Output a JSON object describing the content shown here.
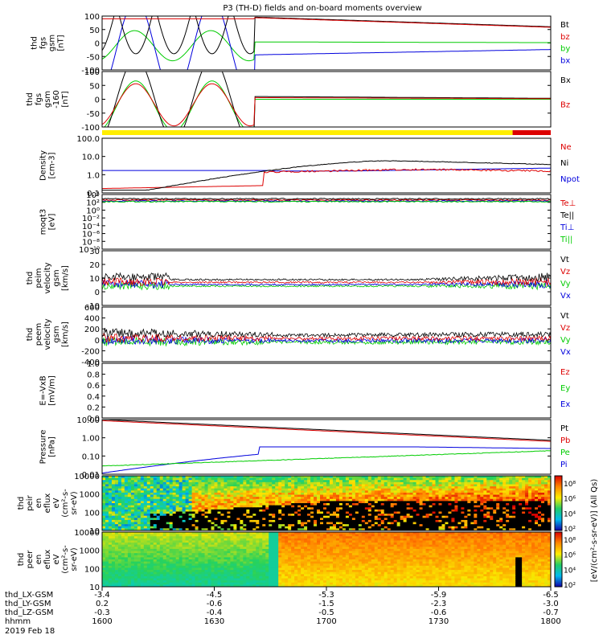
{
  "title": "P3 (TH-D) fields and on-board moments overview",
  "colors": {
    "black": "#000000",
    "red": "#dd0000",
    "green": "#00cc00",
    "blue": "#0000dd",
    "yellow": "#ffee00"
  },
  "chart_data": {
    "type": "line",
    "time_range": [
      "1600",
      "1800"
    ],
    "panels": [
      {
        "id": "fgs",
        "ylabel": [
          "thd",
          "fgs",
          "gsm",
          "[nT]"
        ],
        "yticks": [
          "100",
          "50",
          "0",
          "-50",
          "-100"
        ],
        "ylim": [
          -100,
          100
        ],
        "legend": [
          {
            "label": "Bt",
            "color": "#000000"
          },
          {
            "label": "bz",
            "color": "#dd0000"
          },
          {
            "label": "by",
            "color": "#00cc00"
          },
          {
            "label": "bx",
            "color": "#0000dd"
          }
        ]
      },
      {
        "id": "fgs2",
        "ylabel": [
          "thd",
          "fgs",
          "gsm",
          "-160",
          "[nT]"
        ],
        "yticks": [
          "100",
          "50",
          "0",
          "-50",
          "-100"
        ],
        "ylim": [
          -120,
          120
        ],
        "legend": [
          {
            "label": "Bx",
            "color": "#000000"
          },
          {
            "label": "Bz",
            "color": "#dd0000"
          }
        ]
      },
      {
        "id": "density",
        "ylabel": [
          "Density",
          "[cm-3]"
        ],
        "yticks": [
          "100.0",
          "10.0",
          "1.0",
          "0.1"
        ],
        "scale": "log",
        "legend": [
          {
            "label": "Ne",
            "color": "#dd0000"
          },
          {
            "label": "Ni",
            "color": "#000000"
          },
          {
            "label": "Npot",
            "color": "#0000dd"
          }
        ]
      },
      {
        "id": "temp",
        "ylabel": [
          "moqt3",
          "[eV]"
        ],
        "yticks": [
          "10⁴",
          "10²",
          "10⁰",
          "10⁻²",
          "10⁻⁴",
          "10⁻⁶",
          "10⁻⁸",
          "10⁻¹⁰"
        ],
        "scale": "log",
        "legend": [
          {
            "label": "Te⊥",
            "color": "#dd0000"
          },
          {
            "label": "Te||",
            "color": "#000000"
          },
          {
            "label": "Ti⊥",
            "color": "#0000dd"
          },
          {
            "label": "Ti||",
            "color": "#00cc00"
          }
        ]
      },
      {
        "id": "peim",
        "ylabel": [
          "thd",
          "peim",
          "velocity",
          "gsm",
          "[km/s]"
        ],
        "yticks": [
          "30",
          "20",
          "10",
          "0",
          "-10"
        ],
        "ylim": [
          -20,
          30
        ],
        "legend": [
          {
            "label": "Vt",
            "color": "#000000"
          },
          {
            "label": "Vz",
            "color": "#dd0000"
          },
          {
            "label": "Vy",
            "color": "#00cc00"
          },
          {
            "label": "Vx",
            "color": "#0000dd"
          }
        ]
      },
      {
        "id": "peem",
        "ylabel": [
          "thd",
          "peem",
          "velocity",
          "gsm",
          "[km/s]"
        ],
        "yticks": [
          "600",
          "400",
          "200",
          "0",
          "-200",
          "-400"
        ],
        "ylim": [
          -400,
          600
        ],
        "legend": [
          {
            "label": "Vt",
            "color": "#000000"
          },
          {
            "label": "Vz",
            "color": "#dd0000"
          },
          {
            "label": "Vy",
            "color": "#00cc00"
          },
          {
            "label": "Vx",
            "color": "#0000dd"
          }
        ]
      },
      {
        "id": "efield",
        "ylabel": [
          "E=-VxB",
          "[mV/m]"
        ],
        "yticks": [
          "1.0",
          "0.8",
          "0.6",
          "0.4",
          "0.2",
          "0.0"
        ],
        "ylim": [
          0,
          1
        ],
        "legend": [
          {
            "label": "Ez",
            "color": "#dd0000"
          },
          {
            "label": "Ey",
            "color": "#00cc00"
          },
          {
            "label": "Ex",
            "color": "#0000dd"
          }
        ]
      },
      {
        "id": "pressure",
        "ylabel": [
          "Pressure",
          "[nPa]"
        ],
        "yticks": [
          "10.00",
          "1.00",
          "0.10",
          "0.01"
        ],
        "scale": "log",
        "legend": [
          {
            "label": "Pt",
            "color": "#000000"
          },
          {
            "label": "Pb",
            "color": "#dd0000"
          },
          {
            "label": "Pe",
            "color": "#00cc00"
          },
          {
            "label": "Pi",
            "color": "#0000dd"
          }
        ]
      },
      {
        "id": "peir",
        "ylabel": [
          "thd",
          "peir",
          "en",
          "eflux",
          "eV",
          "(cm²-s-",
          "sr-eV)"
        ],
        "yticks": [
          "10000",
          "1000",
          "100",
          "10"
        ],
        "type": "heatmap"
      },
      {
        "id": "peer",
        "ylabel": [
          "thd",
          "peer",
          "en",
          "eflux",
          "eV",
          "(cm²-s-",
          "sr-eV)"
        ],
        "yticks": [
          "10000",
          "1000",
          "100",
          "10"
        ],
        "type": "heatmap"
      }
    ],
    "colorbar": {
      "label": "[eV/(cm²-s-sr-eV)] (All Qs)",
      "ticks_top": [
        "10⁸",
        "10⁶",
        "10⁴",
        "10²"
      ],
      "ticks_bottom": [
        "10⁸",
        "10⁶",
        "10⁴",
        "10²"
      ]
    },
    "x_axis": {
      "rows": [
        {
          "label": "thd_LX-GSM",
          "values": [
            "-3.4",
            "-4.5",
            "-5.3",
            "-5.9",
            "-6.5"
          ]
        },
        {
          "label": "thd_LY-GSM",
          "values": [
            "0.2",
            "-0.6",
            "-1.5",
            "-2.3",
            "-3.0"
          ]
        },
        {
          "label": "thd_LZ-GSM",
          "values": [
            "-0.3",
            "-0.4",
            "-0.5",
            "-0.6",
            "-0.7"
          ]
        },
        {
          "label": "hhmm",
          "values": [
            "1600",
            "1630",
            "1700",
            "1730",
            "1800"
          ]
        }
      ],
      "date": "2019 Feb 18"
    }
  }
}
